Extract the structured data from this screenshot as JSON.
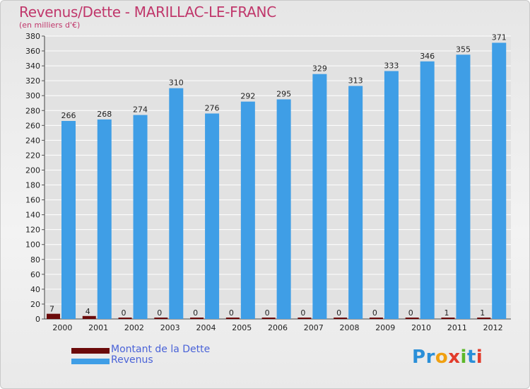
{
  "chart_data": {
    "type": "bar",
    "title": "Revenus/Dette - MARILLAC-LE-FRANC",
    "subtitle": "(en milliers d'€)",
    "categories": [
      "2000",
      "2001",
      "2002",
      "2003",
      "2004",
      "2005",
      "2006",
      "2007",
      "2008",
      "2009",
      "2010",
      "2011",
      "2012"
    ],
    "series": [
      {
        "name": "Montant de la Dette",
        "color": "#6b0a0a",
        "values": [
          7,
          4,
          0,
          0,
          0,
          0,
          0,
          0,
          0,
          0,
          0,
          1,
          1
        ]
      },
      {
        "name": "Revenus",
        "color": "#3f9ee6",
        "values": [
          266,
          268,
          274,
          310,
          276,
          292,
          295,
          329,
          313,
          333,
          346,
          355,
          371
        ]
      }
    ],
    "ylim": [
      0,
      380
    ],
    "ytick_step": 20,
    "yticks": [
      0,
      20,
      40,
      60,
      80,
      100,
      120,
      140,
      160,
      180,
      200,
      220,
      240,
      260,
      280,
      300,
      320,
      340,
      360,
      380
    ],
    "grid": true,
    "legend_position": "bottom-left"
  },
  "brand": {
    "logo_letters": [
      "P",
      "r",
      "o",
      "x",
      "i",
      "t",
      "i"
    ],
    "logo_colors": [
      "#2a8fd8",
      "#2a8fd8",
      "#f0a010",
      "#e23c2c",
      "#5cb82a",
      "#2a8fd8",
      "#e23c2c"
    ]
  }
}
